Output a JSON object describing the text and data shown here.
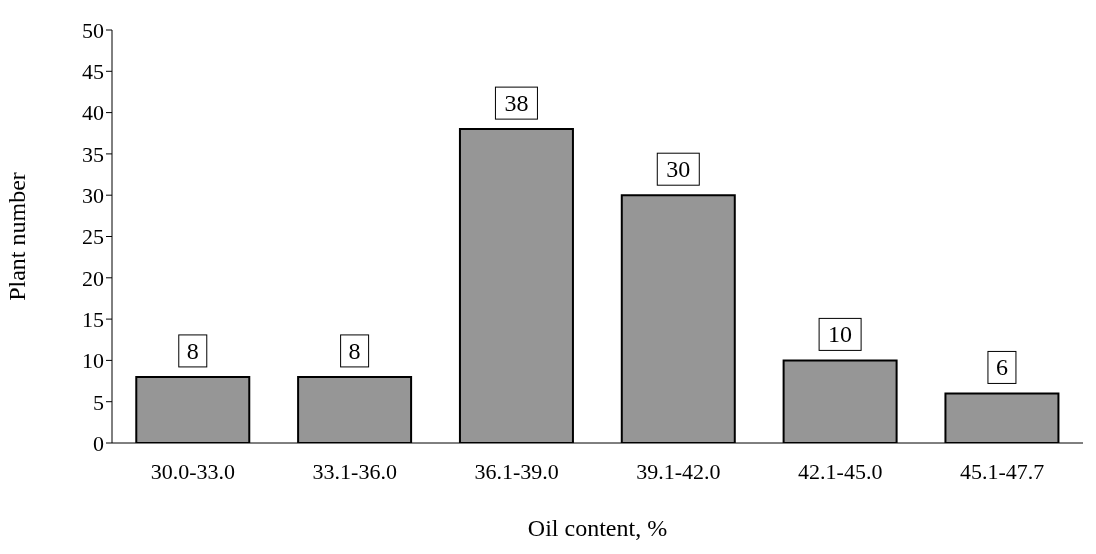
{
  "chart_data": {
    "type": "bar",
    "xlabel": "Oil content, %",
    "ylabel": "Plant number",
    "categories": [
      "30.0-33.0",
      "33.1-36.0",
      "36.1-39.0",
      "39.1-42.0",
      "42.1-45.0",
      "45.1-47.7"
    ],
    "values": [
      8,
      8,
      38,
      30,
      10,
      6
    ],
    "color": "#969696",
    "ylim": [
      0,
      50
    ],
    "yticks": [
      0,
      5,
      10,
      15,
      20,
      25,
      30,
      35,
      40,
      45,
      50
    ],
    "data_labels": true
  }
}
